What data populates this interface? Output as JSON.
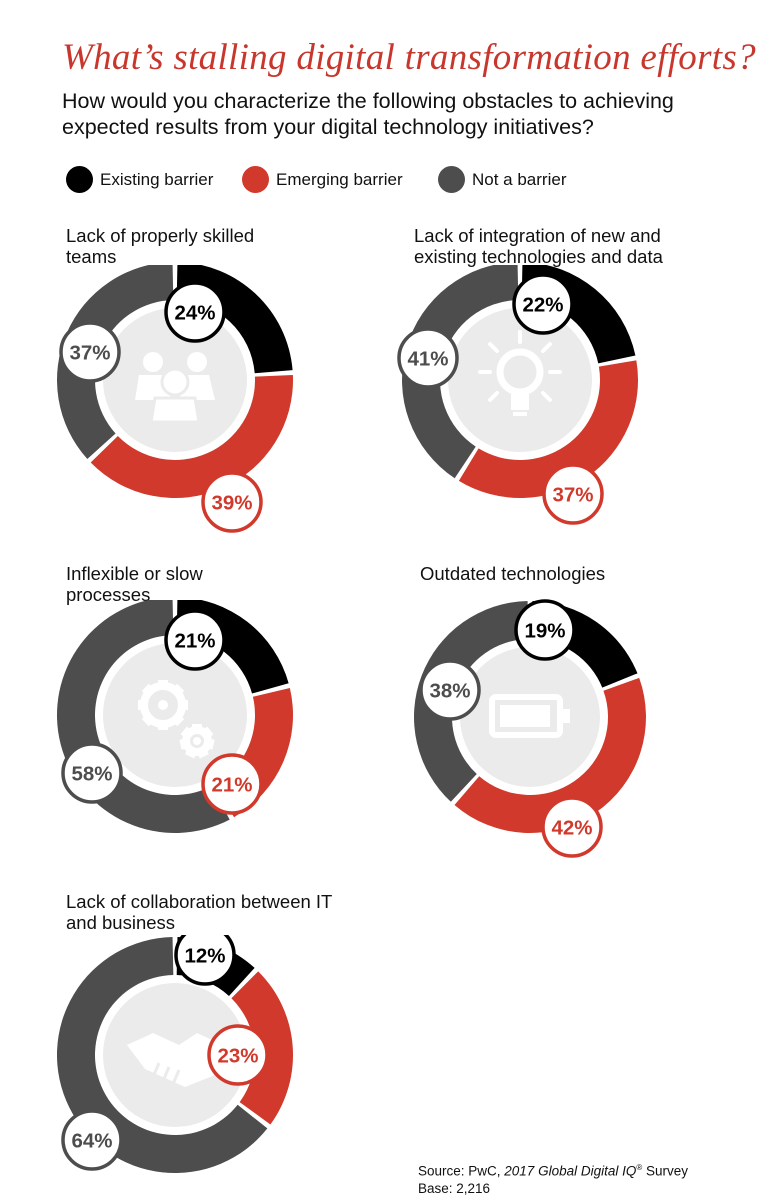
{
  "title": "What’s stalling digital transformation efforts?",
  "subtitle": "How would you characterize the following obstacles to achieving expected results from your digital technology initiatives?",
  "colors": {
    "existing": "#000000",
    "emerging": "#d0392b",
    "not": "#4d4d4d",
    "center": "#ebebeb",
    "icon": "#ffffff"
  },
  "legend": [
    {
      "label": "Existing barrier",
      "color": "#000000"
    },
    {
      "label": "Emerging barrier",
      "color": "#d0392b"
    },
    {
      "label": "Not a barrier",
      "color": "#4d4d4d"
    }
  ],
  "chart_data": [
    {
      "type": "pie",
      "title": "Lack of properly skilled teams",
      "icon": "team-icon",
      "categories": [
        "Existing barrier",
        "Emerging barrier",
        "Not a barrier"
      ],
      "values": [
        24,
        39,
        37
      ],
      "labels": [
        "24%",
        "39%",
        "37%"
      ]
    },
    {
      "type": "pie",
      "title": "Lack of integration of new and existing technologies and data",
      "icon": "lightbulb-icon",
      "categories": [
        "Existing barrier",
        "Emerging barrier",
        "Not a barrier"
      ],
      "values": [
        22,
        37,
        41
      ],
      "labels": [
        "22%",
        "37%",
        "41%"
      ]
    },
    {
      "type": "pie",
      "title": "Inflexible or slow processes",
      "icon": "gears-icon",
      "categories": [
        "Existing barrier",
        "Emerging barrier",
        "Not a barrier"
      ],
      "values": [
        21,
        21,
        58
      ],
      "labels": [
        "21%",
        "21%",
        "58%"
      ]
    },
    {
      "type": "pie",
      "title": "Outdated technologies",
      "icon": "battery-icon",
      "categories": [
        "Existing barrier",
        "Emerging barrier",
        "Not a barrier"
      ],
      "values": [
        19,
        42,
        38
      ],
      "labels": [
        "19%",
        "42%",
        "38%"
      ]
    },
    {
      "type": "pie",
      "title": "Lack of collaboration between IT and business",
      "icon": "handshake-icon",
      "categories": [
        "Existing barrier",
        "Emerging barrier",
        "Not a barrier"
      ],
      "values": [
        12,
        23,
        64
      ],
      "labels": [
        "12%",
        "23%",
        "64%"
      ]
    }
  ],
  "source": {
    "prefix": "Source: PwC, ",
    "report": "2017 Global Digital IQ",
    "reg": "®",
    "suffix": " Survey",
    "base": "Base: 2,216"
  }
}
